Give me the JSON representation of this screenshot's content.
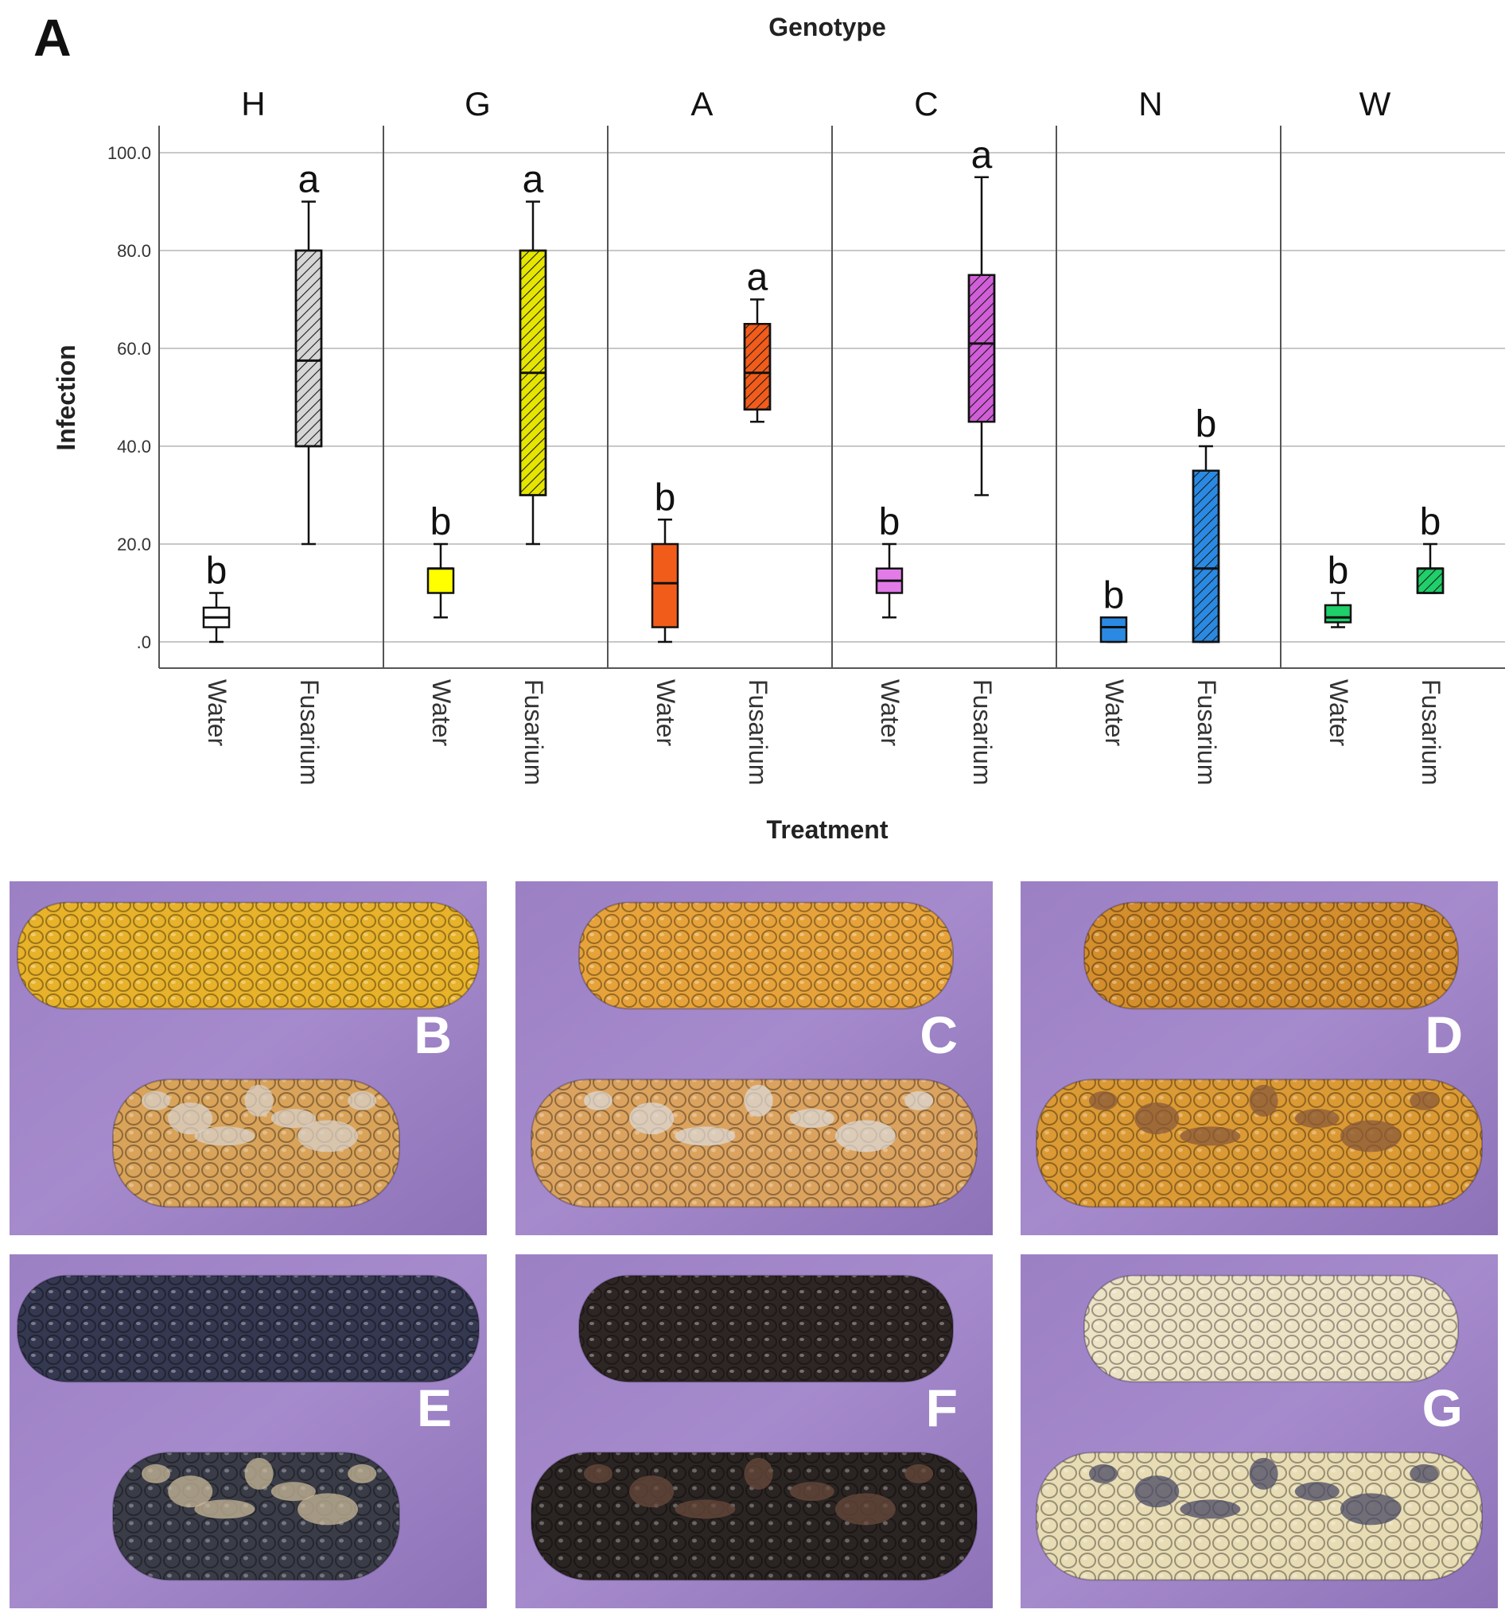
{
  "panel_label": "A",
  "chart_data": {
    "type": "boxplot",
    "title": "Genotype",
    "xlabel": "Treatment",
    "ylabel": "Infection",
    "ylim": [
      0,
      100
    ],
    "yticks": [
      0,
      20,
      40,
      60,
      80,
      100
    ],
    "ytick_labels": [
      ".0",
      "20.0",
      "40.0",
      "60.0",
      "80.0",
      "100.0"
    ],
    "grid": true,
    "categories": [
      "Water",
      "Fusarium"
    ],
    "facets": [
      {
        "genotype": "H",
        "boxes": [
          {
            "treatment": "Water",
            "min": 0,
            "q1": 3,
            "median": 5,
            "q3": 7,
            "max": 10,
            "letter": "b",
            "color": "#ffffff",
            "hatch": false
          },
          {
            "treatment": "Fusarium",
            "min": 20,
            "q1": 40,
            "median": 57.5,
            "q3": 80,
            "max": 90,
            "letter": "a",
            "color": "#d6d6d6",
            "hatch": true
          }
        ]
      },
      {
        "genotype": "G",
        "boxes": [
          {
            "treatment": "Water",
            "min": 5,
            "q1": 10,
            "median": 15,
            "q3": 15,
            "max": 20,
            "letter": "b",
            "color": "#ffff00",
            "hatch": false
          },
          {
            "treatment": "Fusarium",
            "min": 20,
            "q1": 30,
            "median": 55,
            "q3": 80,
            "max": 90,
            "letter": "a",
            "color": "#e5e500",
            "hatch": true
          }
        ]
      },
      {
        "genotype": "A",
        "boxes": [
          {
            "treatment": "Water",
            "min": 0,
            "q1": 3,
            "median": 12,
            "q3": 20,
            "max": 25,
            "letter": "b",
            "color": "#f25c1a",
            "hatch": false
          },
          {
            "treatment": "Fusarium",
            "min": 45,
            "q1": 47.5,
            "median": 55,
            "q3": 65,
            "max": 70,
            "letter": "a",
            "color": "#f25c1a",
            "hatch": true
          }
        ]
      },
      {
        "genotype": "C",
        "boxes": [
          {
            "treatment": "Water",
            "min": 5,
            "q1": 10,
            "median": 12.5,
            "q3": 15,
            "max": 20,
            "letter": "b",
            "color": "#e27be8",
            "hatch": false
          },
          {
            "treatment": "Fusarium",
            "min": 30,
            "q1": 45,
            "median": 61,
            "q3": 75,
            "max": 95,
            "letter": "a",
            "color": "#d15ed8",
            "hatch": true
          }
        ]
      },
      {
        "genotype": "N",
        "boxes": [
          {
            "treatment": "Water",
            "min": 0,
            "q1": 0,
            "median": 3,
            "q3": 5,
            "max": 5,
            "letter": "b",
            "color": "#2a8ae3",
            "hatch": false
          },
          {
            "treatment": "Fusarium",
            "min": 0,
            "q1": 0,
            "median": 15,
            "q3": 35,
            "max": 40,
            "letter": "b",
            "color": "#2a8ae3",
            "hatch": true
          }
        ]
      },
      {
        "genotype": "W",
        "boxes": [
          {
            "treatment": "Water",
            "min": 3,
            "q1": 4,
            "median": 5,
            "q3": 7.5,
            "max": 10,
            "letter": "b",
            "color": "#1fcf6a",
            "hatch": false
          },
          {
            "treatment": "Fusarium",
            "min": 10,
            "q1": 10,
            "median": 15,
            "q3": 15,
            "max": 20,
            "letter": "b",
            "color": "#1fcf6a",
            "hatch": true
          }
        ]
      }
    ]
  },
  "photos": [
    {
      "label": "B",
      "top_kernel": "#e8b22a",
      "bottom_kernel": "#d9a35a",
      "mold": "#d8d0c8"
    },
    {
      "label": "C",
      "top_kernel": "#e7a33a",
      "bottom_kernel": "#dca35f",
      "mold": "#dcd8d4"
    },
    {
      "label": "D",
      "top_kernel": "#d48e2c",
      "bottom_kernel": "#dc9a34",
      "mold": "#8a5a38"
    },
    {
      "label": "E",
      "top_kernel": "#343850",
      "bottom_kernel": "#3a3c48",
      "mold": "#c8b898"
    },
    {
      "label": "F",
      "top_kernel": "#2e2624",
      "bottom_kernel": "#2a2422",
      "mold": "#6a4a3c"
    },
    {
      "label": "G",
      "top_kernel": "#ece2c4",
      "bottom_kernel": "#e8dcb4",
      "mold": "#4a4a64"
    }
  ]
}
